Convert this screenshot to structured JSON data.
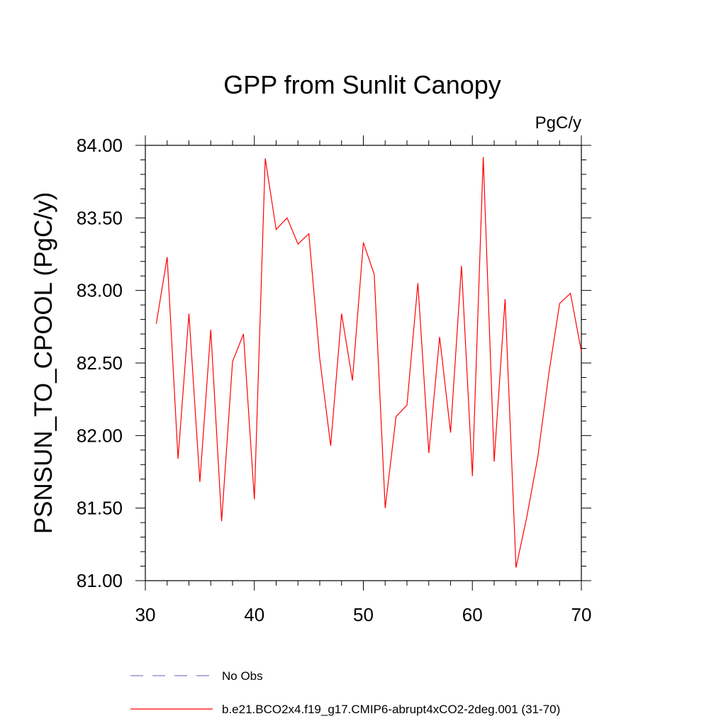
{
  "chart_data": {
    "type": "line",
    "title": "GPP from Sunlit Canopy",
    "units": "PgC/y",
    "ylabel": "PSNSUN_TO_CPOOL  (PgC/y)",
    "xlabel": "",
    "xlim": [
      30,
      70
    ],
    "ylim": [
      81.0,
      84.0
    ],
    "xticks": [
      30,
      40,
      50,
      60,
      70
    ],
    "xtick_labels": [
      "30",
      "40",
      "50",
      "60",
      "70"
    ],
    "yticks": [
      81.0,
      81.5,
      82.0,
      82.5,
      83.0,
      83.5,
      84.0
    ],
    "ytick_labels": [
      "81.00",
      "81.50",
      "82.00",
      "82.50",
      "83.00",
      "83.50",
      "84.00"
    ],
    "grid": false,
    "legend_position": "bottom",
    "series": [
      {
        "name": "b.e21.BCO2x4.f19_g17.CMIP6-abrupt4xCO2-2deg.001 (31-70)",
        "color": "#ff0000",
        "style": "solid",
        "x": [
          31,
          32,
          33,
          34,
          35,
          36,
          37,
          38,
          39,
          40,
          41,
          42,
          43,
          44,
          45,
          46,
          47,
          48,
          49,
          50,
          51,
          52,
          53,
          54,
          55,
          56,
          57,
          58,
          59,
          60,
          61,
          62,
          63,
          64,
          65,
          66,
          67,
          68,
          69,
          70
        ],
        "y": [
          82.77,
          83.23,
          81.84,
          82.84,
          81.68,
          82.73,
          81.41,
          82.51,
          82.7,
          81.56,
          83.91,
          83.42,
          83.5,
          83.32,
          83.39,
          82.53,
          81.93,
          82.84,
          82.38,
          83.33,
          83.11,
          81.5,
          82.13,
          82.21,
          83.05,
          81.88,
          82.68,
          82.02,
          83.17,
          81.72,
          83.92,
          81.82,
          82.94,
          81.09,
          81.44,
          81.85,
          82.42,
          82.91,
          82.98,
          82.58
        ]
      },
      {
        "name": "No Obs",
        "color": "#8080c8",
        "style": "dashed",
        "x": [],
        "y": []
      }
    ]
  }
}
